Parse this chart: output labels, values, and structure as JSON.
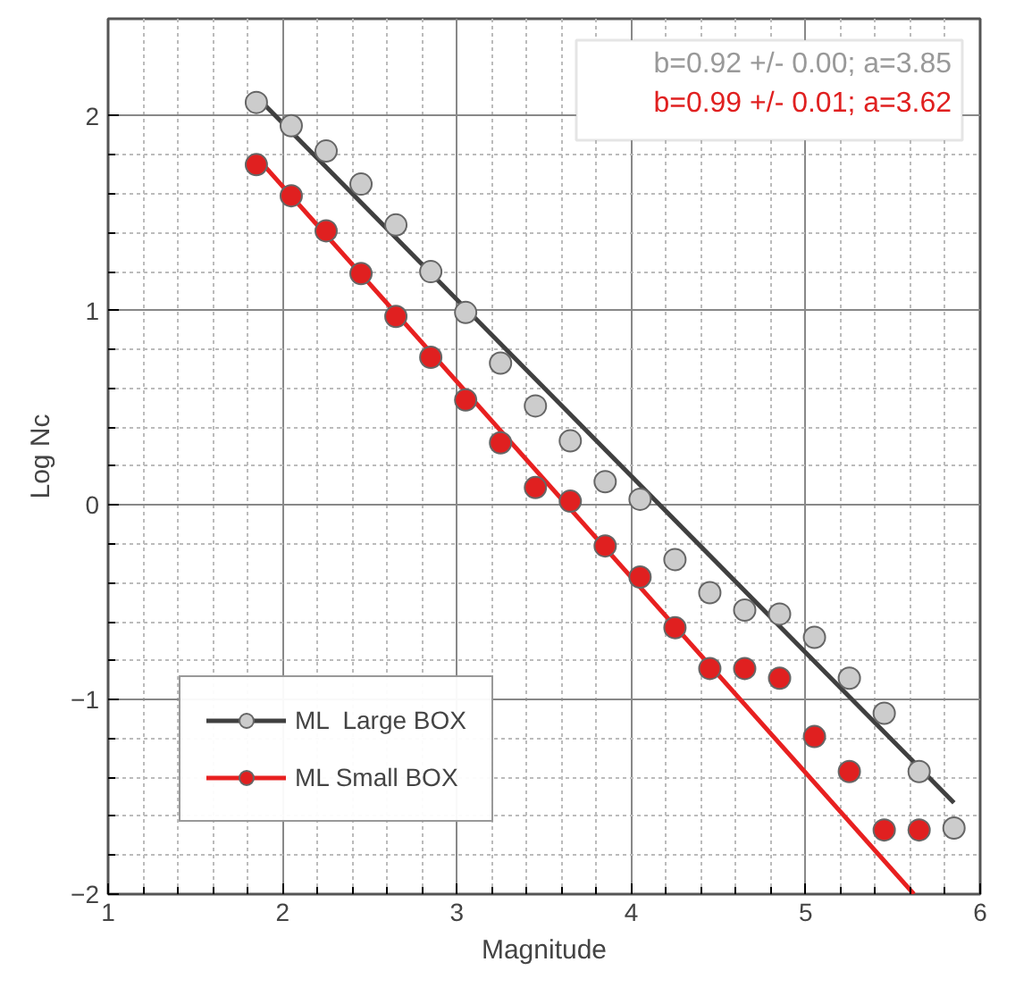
{
  "chart_data": {
    "type": "scatter",
    "xlabel": "Magnitude",
    "ylabel": "Log Nc",
    "xlim": [
      1,
      6
    ],
    "ylim": [
      -2,
      2.5
    ],
    "xticks": [
      1,
      2,
      3,
      4,
      5,
      6
    ],
    "yticks": [
      -2,
      -1,
      0,
      1,
      2
    ],
    "grid": true,
    "legend": "bottom left",
    "marker": "circle",
    "annotations": [
      "b=0.92 +/- 0.00; a=3.85",
      "b=0.99 +/- 0.01; a=3.62"
    ],
    "series": [
      {
        "name": "ML  Large BOX",
        "color": "#cccccc",
        "x": [
          1.85,
          2.05,
          2.25,
          2.45,
          2.65,
          2.85,
          3.05,
          3.25,
          3.45,
          3.65,
          3.85,
          4.05,
          4.25,
          4.45,
          4.65,
          4.85,
          5.05,
          5.25,
          5.45,
          5.65,
          5.85
        ],
        "values": [
          2.07,
          1.95,
          1.82,
          1.65,
          1.44,
          1.2,
          0.99,
          0.73,
          0.51,
          0.33,
          0.12,
          0.03,
          -0.28,
          -0.45,
          -0.54,
          -0.56,
          -0.68,
          -0.89,
          -1.07,
          -1.37,
          -1.66
        ]
      },
      {
        "name": "ML Small BOX",
        "color": "#e02020",
        "x": [
          1.85,
          2.05,
          2.25,
          2.45,
          2.65,
          2.85,
          3.05,
          3.25,
          3.45,
          3.65,
          3.85,
          4.05,
          4.25,
          4.45,
          4.65,
          4.85,
          5.05,
          5.25,
          5.45,
          5.65
        ],
        "values": [
          1.75,
          1.59,
          1.41,
          1.19,
          0.97,
          0.76,
          0.54,
          0.32,
          0.09,
          0.02,
          -0.21,
          -0.37,
          -0.63,
          -0.84,
          -0.84,
          -0.89,
          -1.19,
          -1.37,
          -1.67,
          -1.67
        ]
      },
      {
        "type": "line",
        "marker": "none",
        "color": "#404040",
        "x": [
          1.85,
          5.85
        ],
        "values": [
          2.1,
          -1.53
        ]
      },
      {
        "type": "line",
        "marker": "none",
        "color": "#e82020",
        "x": [
          1.85,
          5.62
        ],
        "values": [
          1.79,
          -2.0
        ]
      }
    ]
  }
}
